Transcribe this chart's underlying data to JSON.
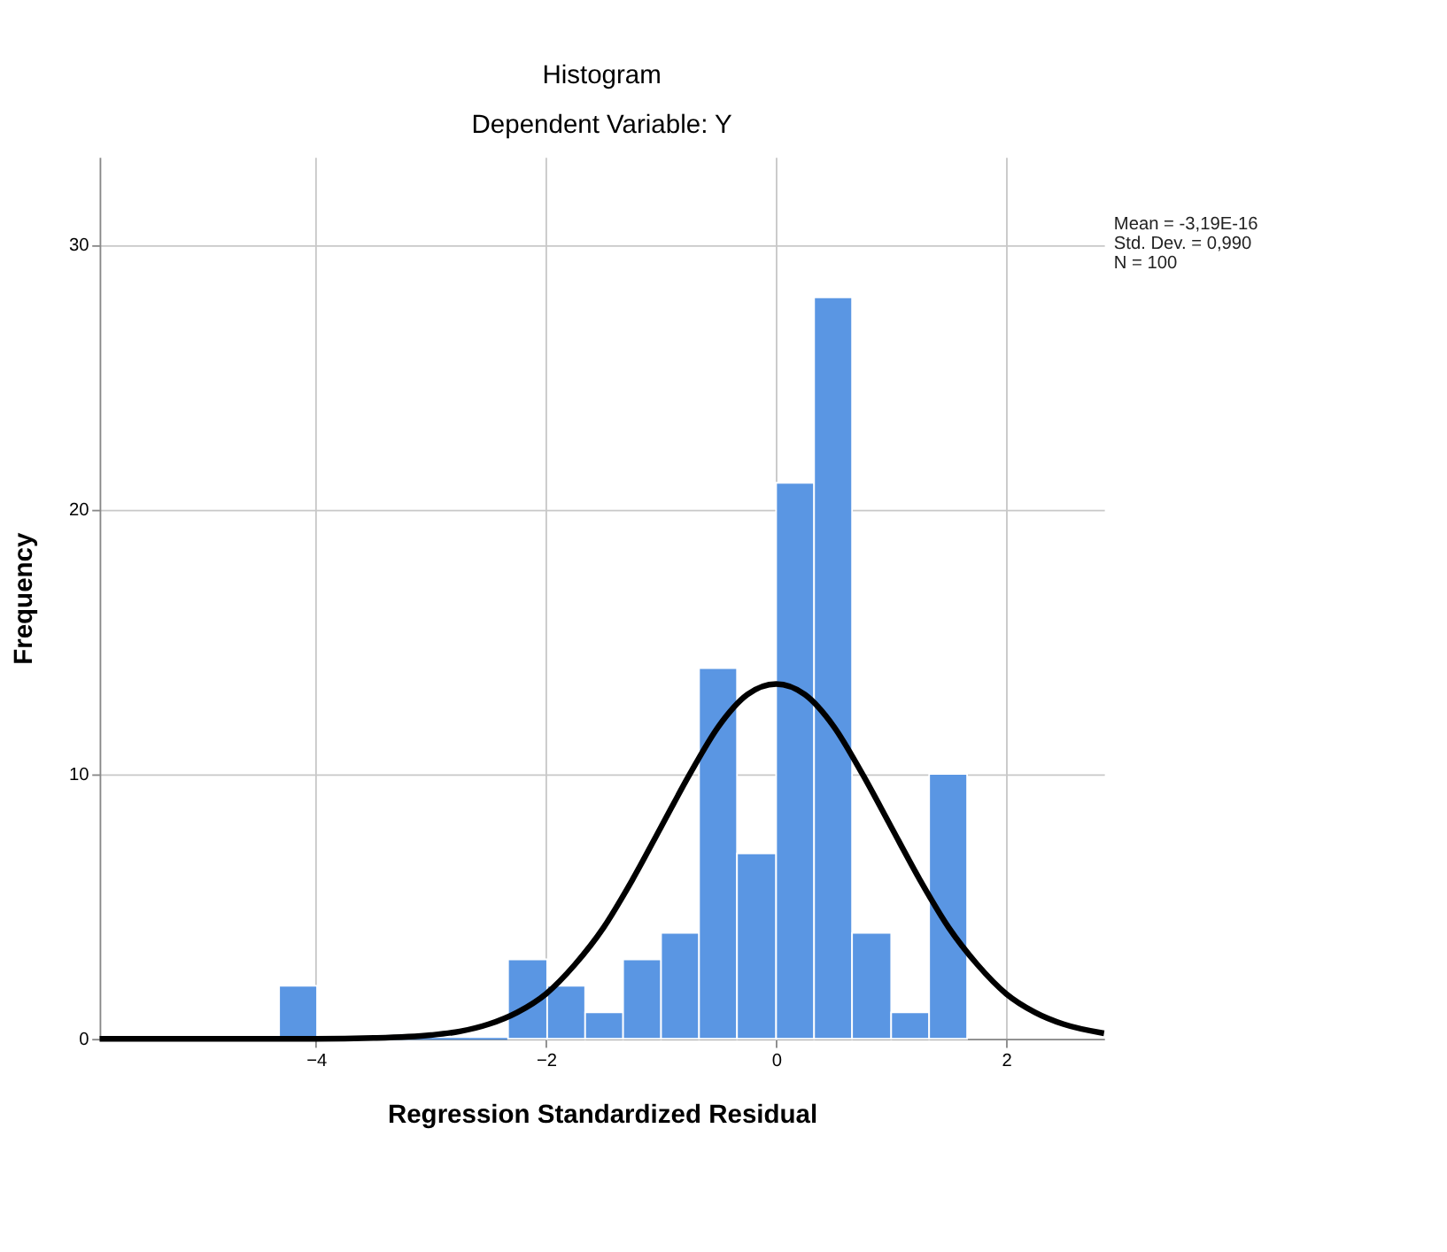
{
  "chart_data": {
    "type": "histogram",
    "title": "Histogram",
    "subtitle": "Dependent Variable: Y",
    "xlabel": "Regression Standardized Residual",
    "ylabel": "Frequency",
    "bins": [
      -4.32,
      -3.99,
      -3.66,
      -3.32,
      -2.99,
      -2.66,
      -2.33,
      -1.99,
      -1.66,
      -1.33,
      -1.0,
      -0.67,
      -0.34,
      0.0,
      0.33,
      0.66,
      1.0,
      1.33,
      1.66
    ],
    "values": [
      2,
      0,
      0,
      0,
      0,
      0,
      3,
      2,
      1,
      3,
      4,
      14,
      7,
      21,
      28,
      4,
      1,
      10
    ],
    "color": "#5a96e3",
    "series": [
      {
        "type": "line",
        "color": "#000000",
        "x": [
          -5.88,
          -4,
          -3.5,
          -3,
          -2.75,
          -2.5,
          -2.25,
          -2,
          -1.75,
          -1.5,
          -1.25,
          -1,
          -0.75,
          -0.5,
          -0.25,
          0,
          0.25,
          0.5,
          0.75,
          1,
          1.25,
          1.5,
          1.75,
          2,
          2.25,
          2.5,
          2.85
        ],
        "values": [
          0,
          0,
          0.03,
          0.14,
          0.28,
          0.55,
          1.0,
          1.7,
          2.8,
          4.2,
          6.0,
          8.0,
          10.0,
          11.8,
          13.0,
          13.4,
          13.0,
          11.8,
          10.0,
          8.0,
          6.0,
          4.2,
          2.8,
          1.7,
          1.0,
          0.55,
          0.21
        ]
      }
    ],
    "xlim": [
      -5.88,
      2.85
    ],
    "xticks": [
      -4,
      -2,
      0,
      2
    ],
    "ylim": [
      0,
      33.3
    ],
    "yticks": [
      0,
      10,
      20,
      30
    ],
    "grid": true,
    "annotations": [
      "Mean = -3,19E-16",
      "Std. Dev. = 0,990",
      "N = 100"
    ]
  }
}
